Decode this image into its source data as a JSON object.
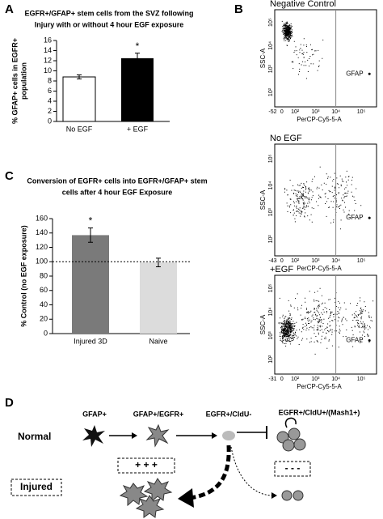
{
  "panel_labels": [
    "A",
    "B",
    "C",
    "D"
  ],
  "chart_data": [
    {
      "type": "bar",
      "title": [
        "EGFR+/GFAP+ stem cells  from the SVZ following",
        "Injury with or without 4 hour EGF exposure"
      ],
      "ylabel": [
        "% GFAP+ cells in EGFR+",
        "population"
      ],
      "categories": [
        "No EGF",
        "+ EGF"
      ],
      "values": [
        8.8,
        12.5
      ],
      "errors": [
        0.4,
        1.0
      ],
      "colors": [
        "#ffffff",
        "#000000"
      ],
      "annotations": [
        null,
        "*"
      ],
      "ylim": [
        0,
        16
      ],
      "yticks": [
        0,
        2,
        4,
        6,
        8,
        10,
        12,
        14,
        16
      ]
    },
    {
      "type": "bar",
      "title": [
        "Conversion of EGFR+ cells into  EGFR+/GFAP+ stem",
        "cells after 4 hour EGF Exposure"
      ],
      "ylabel": [
        "% Control (no EGF exposure)"
      ],
      "categories": [
        "Injured 3D",
        "Naive"
      ],
      "values": [
        137,
        99
      ],
      "errors": [
        10,
        6
      ],
      "colors": [
        "#7a7a7a",
        "#dcdcdc"
      ],
      "annotations": [
        "*",
        null
      ],
      "reference_line": 100,
      "ylim": [
        0,
        160
      ],
      "yticks": [
        0,
        20,
        40,
        60,
        80,
        100,
        120,
        140,
        160
      ]
    }
  ],
  "flow_plots": [
    {
      "title": "Negative Control",
      "ylabel": "SSC-A",
      "xlabel": "PerCP-Cy5-5-A",
      "gate": "GFAP",
      "yticks": [
        "10²",
        "10³",
        "10⁴",
        "10⁵"
      ],
      "xticks": [
        "-52",
        "0",
        "10²",
        "10³",
        "10⁴",
        "10⁵"
      ]
    },
    {
      "title": "No EGF",
      "ylabel": "SSC-A",
      "xlabel": "PerCP-Cy5-5-A",
      "gate": "GFAP",
      "yticks": [
        "10²",
        "10³",
        "10⁴",
        "10⁵"
      ],
      "xticks": [
        "-43",
        "0",
        "10²",
        "10³",
        "10⁴",
        "10⁵"
      ]
    },
    {
      "title": "+EGF",
      "ylabel": "SSC-A",
      "xlabel": "PerCP-Cy5-5-A",
      "gate": "GFAP",
      "yticks": [
        "10²",
        "10³",
        "10⁴",
        "10⁵"
      ],
      "xticks": [
        "-31",
        "0",
        "10²",
        "10³",
        "10⁴",
        "10⁵"
      ]
    }
  ],
  "diagram": {
    "rows": [
      "Normal",
      "Injured"
    ],
    "stages": [
      "GFAP+",
      "GFAP+/EGFR+",
      "EGFR+/CldU-",
      "EGFR+/CldU+/(Mash1+)"
    ],
    "boxes": [
      "+ + +",
      "- - -"
    ]
  }
}
